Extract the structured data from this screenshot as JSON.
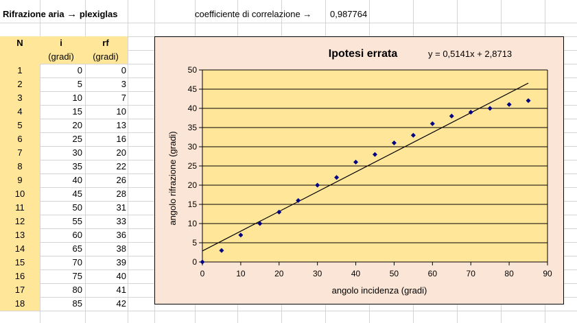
{
  "sheet": {
    "a1_title_prefix": "Rifrazione aria",
    "a1_arrow": "→",
    "a1_title_suffix": "plexiglas",
    "corr_label": "coefficiente di correlazione →",
    "corr_value": "0,987764"
  },
  "table": {
    "header_n": "N",
    "header_i": "i",
    "header_rf": "rf",
    "unit_i": "(gradi)",
    "unit_rf": "(gradi)",
    "rows": [
      {
        "n": "1",
        "i": "0",
        "rf": "0"
      },
      {
        "n": "2",
        "i": "5",
        "rf": "3"
      },
      {
        "n": "3",
        "i": "10",
        "rf": "7"
      },
      {
        "n": "4",
        "i": "15",
        "rf": "10"
      },
      {
        "n": "5",
        "i": "20",
        "rf": "13"
      },
      {
        "n": "6",
        "i": "25",
        "rf": "16"
      },
      {
        "n": "7",
        "i": "30",
        "rf": "20"
      },
      {
        "n": "8",
        "i": "35",
        "rf": "22"
      },
      {
        "n": "9",
        "i": "40",
        "rf": "26"
      },
      {
        "n": "10",
        "i": "45",
        "rf": "28"
      },
      {
        "n": "11",
        "i": "50",
        "rf": "31"
      },
      {
        "n": "12",
        "i": "55",
        "rf": "33"
      },
      {
        "n": "13",
        "i": "60",
        "rf": "36"
      },
      {
        "n": "14",
        "i": "65",
        "rf": "38"
      },
      {
        "n": "15",
        "i": "70",
        "rf": "39"
      },
      {
        "n": "16",
        "i": "75",
        "rf": "40"
      },
      {
        "n": "17",
        "i": "80",
        "rf": "41"
      },
      {
        "n": "18",
        "i": "85",
        "rf": "42"
      }
    ]
  },
  "colors": {
    "header_fill": "#ffe699",
    "chart_bg": "#fbe5d6",
    "plot_bg": "#ffe699",
    "marker": "#000080"
  },
  "chart_data": {
    "type": "scatter",
    "title": "Ipotesi errata",
    "equation": "y = 0,5141x + 2,8713",
    "xlabel": "angolo incidenza (gradi)",
    "ylabel": "angolo rifrazione (gradi)",
    "xlim": [
      0,
      90
    ],
    "ylim": [
      0,
      50
    ],
    "xticks": [
      0,
      10,
      20,
      30,
      40,
      50,
      60,
      70,
      80,
      90
    ],
    "yticks": [
      0,
      5,
      10,
      15,
      20,
      25,
      30,
      35,
      40,
      45,
      50
    ],
    "grid": true,
    "x": [
      0,
      5,
      10,
      15,
      20,
      25,
      30,
      35,
      40,
      45,
      50,
      55,
      60,
      65,
      70,
      75,
      80,
      85
    ],
    "y": [
      0,
      3,
      7,
      10,
      13,
      16,
      20,
      22,
      26,
      28,
      31,
      33,
      36,
      38,
      39,
      40,
      41,
      42
    ],
    "trendline": {
      "slope": 0.5141,
      "intercept": 2.8713,
      "x_range": [
        0,
        85
      ]
    }
  }
}
